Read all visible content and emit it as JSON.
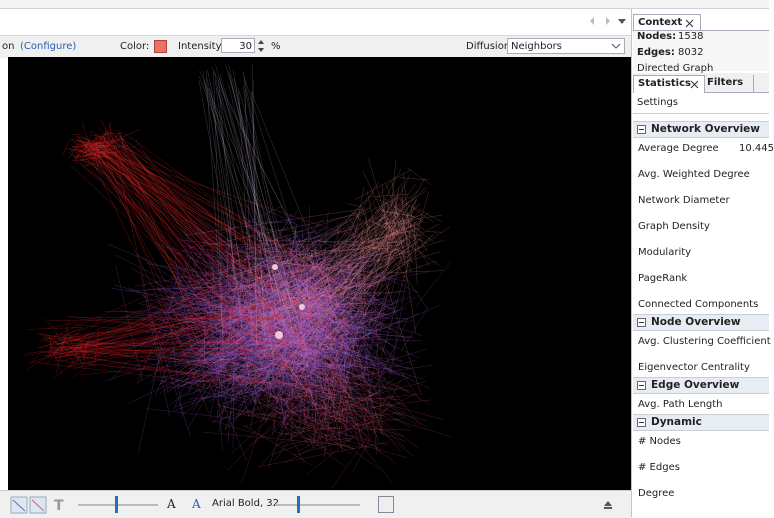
{
  "toolbar": {
    "configure_prefix": "on",
    "configure": "(Configure)",
    "color_label": "Color:",
    "intensity_label": "Intensity:",
    "intensity_value": 30,
    "percent": "%",
    "diffusion_label": "Diffusion:",
    "diffusion_value": "Neighbors"
  },
  "bottom_toolbar": {
    "size_button": "A",
    "color_button": "A",
    "font": "Arial Bold, 32"
  },
  "context": {
    "tab": "Context",
    "nodes_label": "Nodes:",
    "nodes": 1538,
    "edges_label": "Edges:",
    "edges": 8032,
    "graph_type": "Directed Graph"
  },
  "statistics": {
    "tabs": [
      "Statistics",
      "Filters"
    ],
    "settings": "Settings",
    "sections": [
      {
        "title": "Network Overview",
        "items": [
          {
            "label": "Average Degree",
            "value": 10.445
          },
          {
            "label": "Avg. Weighted Degree"
          },
          {
            "label": "Network Diameter"
          },
          {
            "label": "Graph Density"
          },
          {
            "label": "Modularity"
          },
          {
            "label": "PageRank"
          },
          {
            "label": "Connected Components"
          }
        ]
      },
      {
        "title": "Node Overview",
        "items": [
          {
            "label": "Avg. Clustering Coefficient"
          },
          {
            "label": "Eigenvector Centrality"
          }
        ]
      },
      {
        "title": "Edge Overview",
        "items": [
          {
            "label": "Avg. Path Length"
          }
        ]
      },
      {
        "title": "Dynamic",
        "items": [
          {
            "label": "# Nodes"
          },
          {
            "label": "# Edges"
          },
          {
            "label": "Degree"
          }
        ]
      }
    ]
  }
}
